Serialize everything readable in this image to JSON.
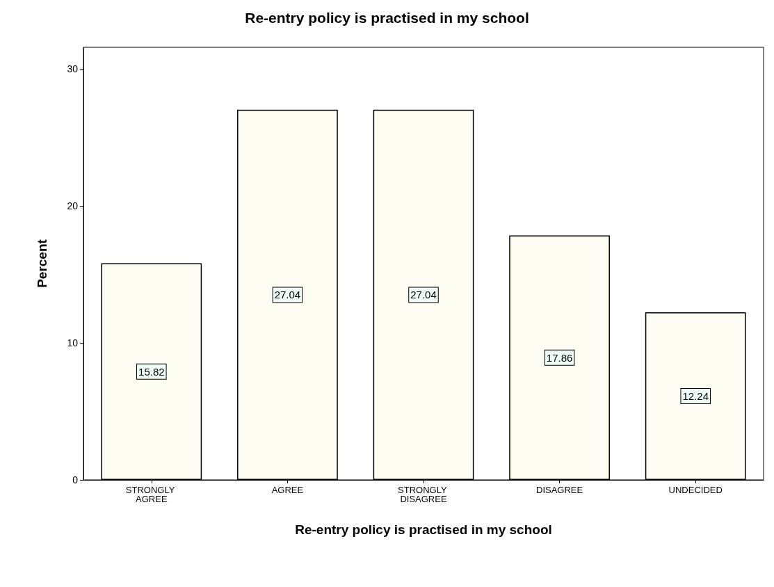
{
  "chart_data": {
    "type": "bar",
    "title": "Re-entry policy is practised in my school",
    "xlabel": "Re-entry policy is practised in my school",
    "ylabel": "Percent",
    "categories": [
      "STRONGLY AGREE",
      "AGREE",
      "STRONGLY DISAGREE",
      "DISAGREE",
      "UNDECIDED"
    ],
    "values": [
      15.82,
      27.04,
      27.04,
      17.86,
      12.24
    ],
    "color": "#fdfdf3",
    "ylim": [
      0,
      31.6
    ],
    "yticks": [
      0,
      10,
      20,
      30
    ],
    "grid": false,
    "data_labels": true
  }
}
